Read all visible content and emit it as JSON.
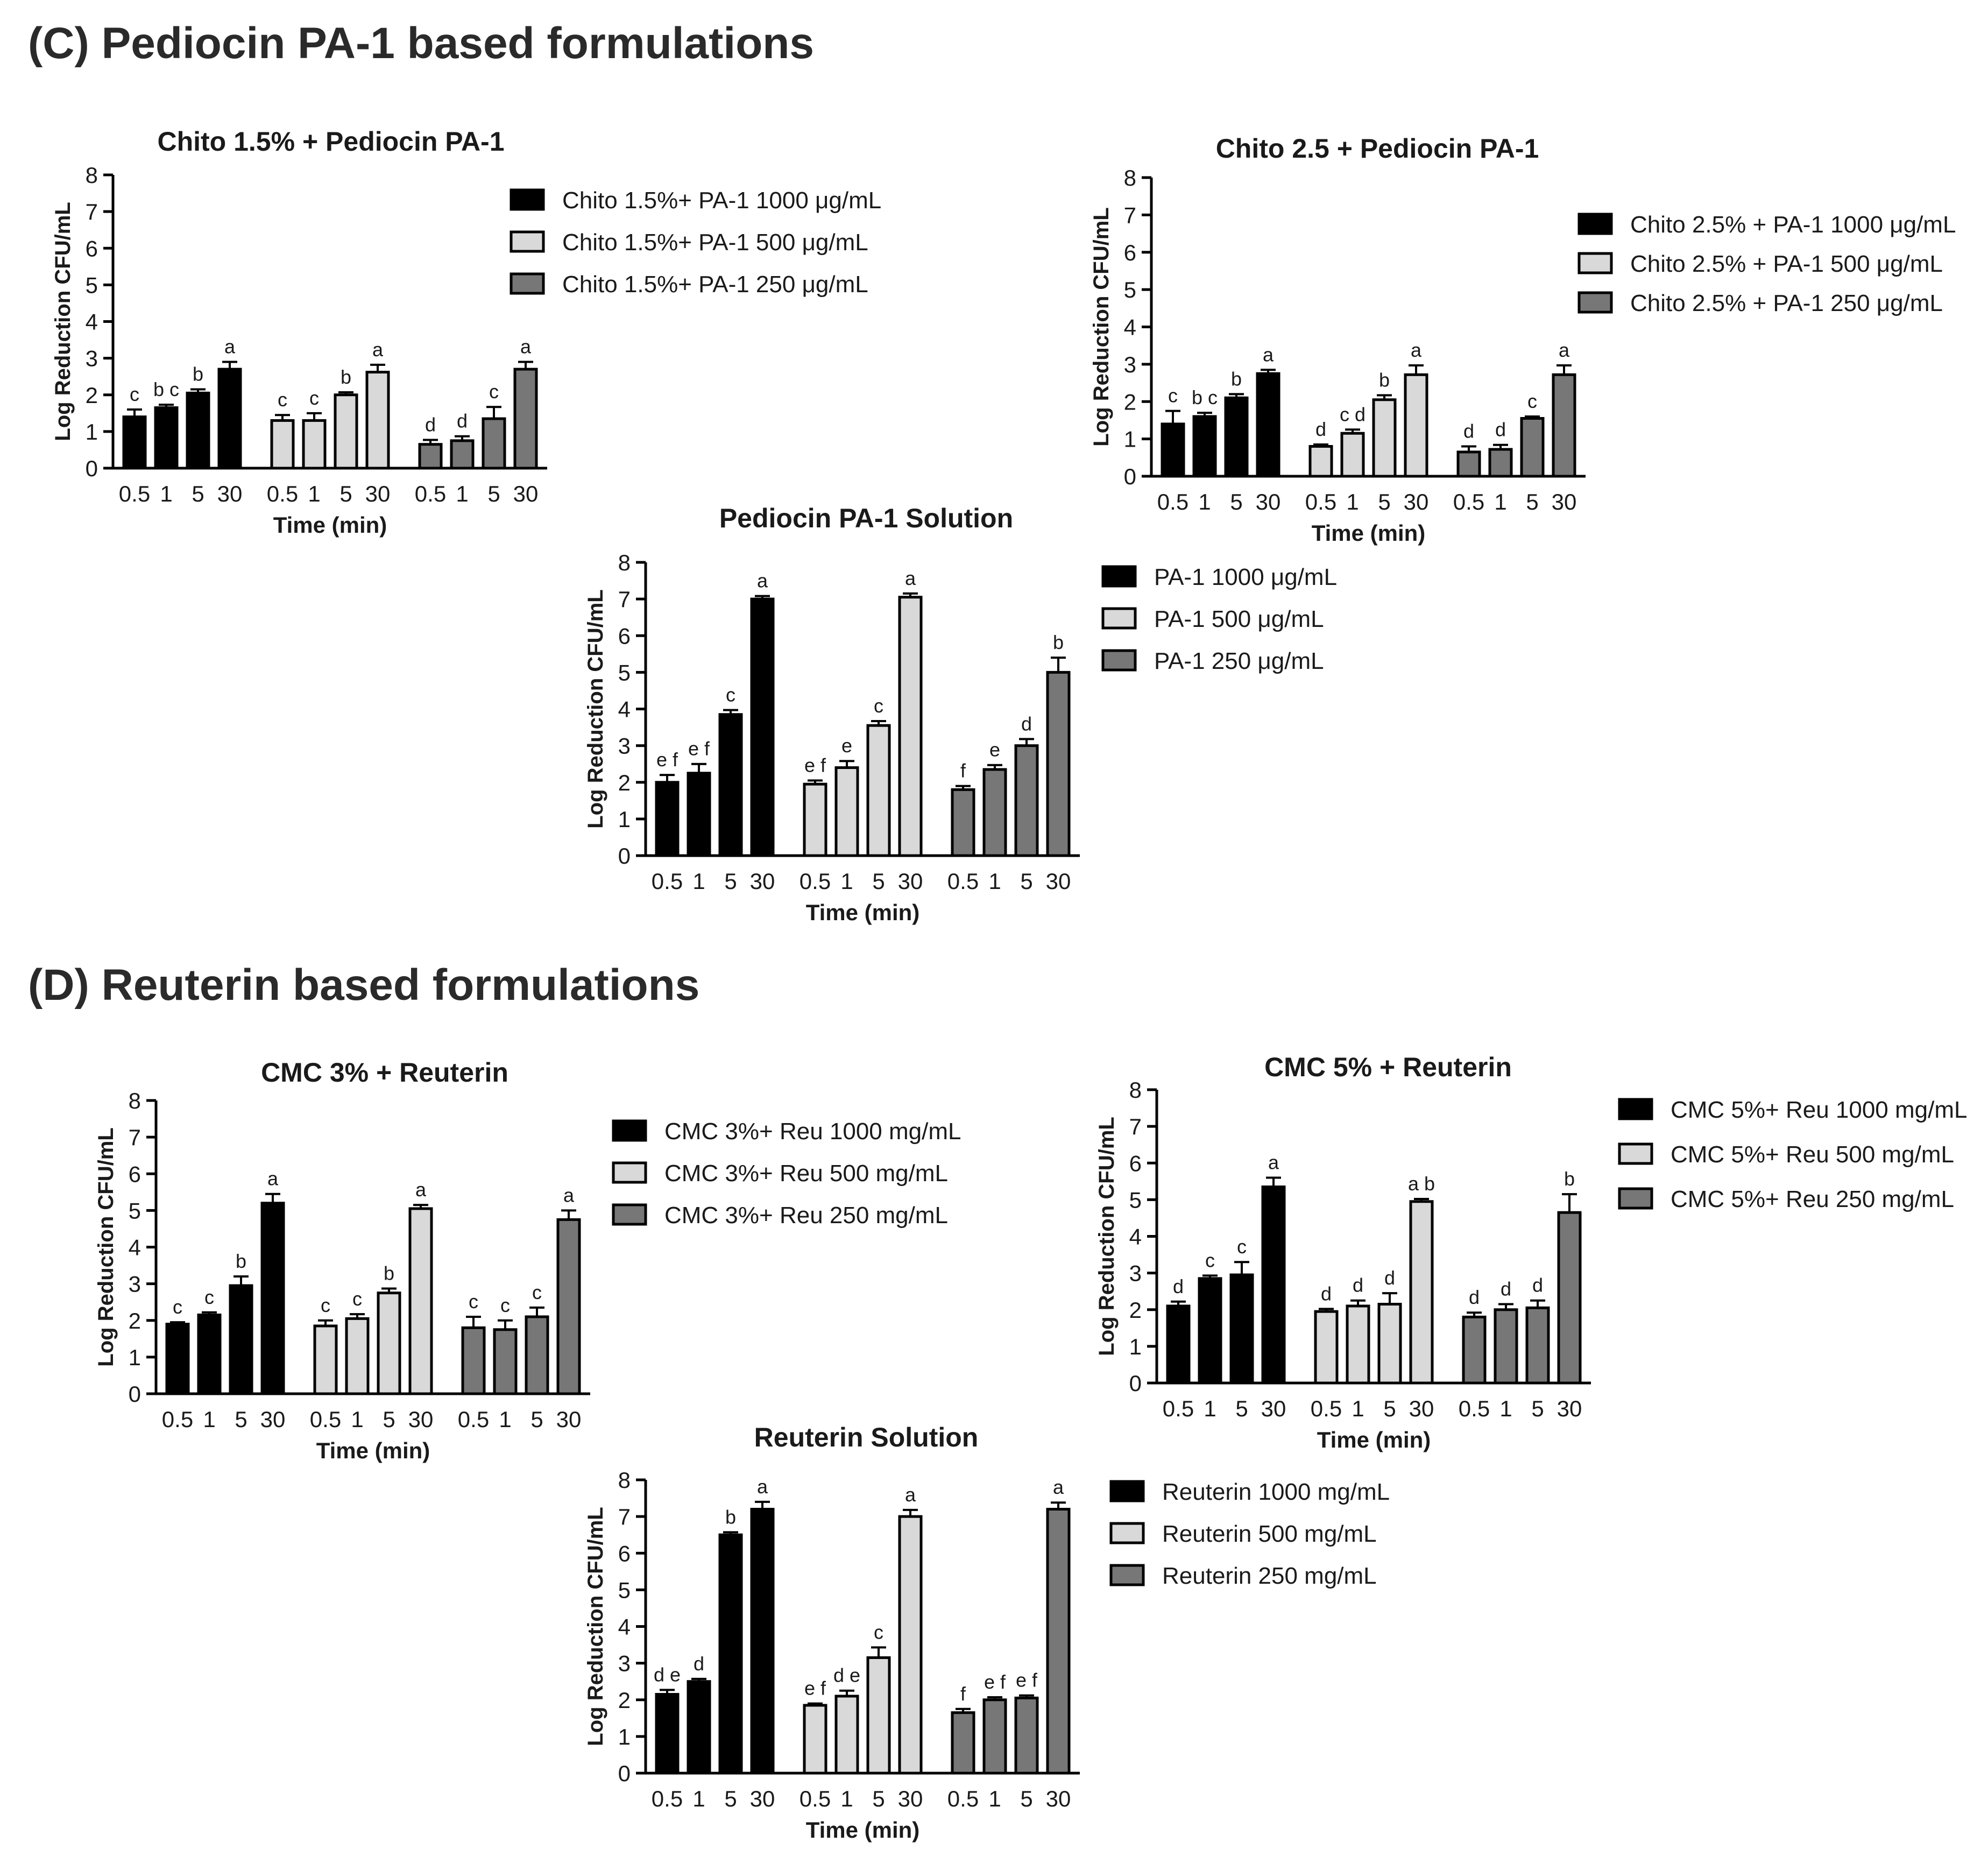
{
  "sections": {
    "c_title": "(C) Pediocin PA-1 based formulations",
    "d_title": "(D) Reuterin based formulations"
  },
  "colors": {
    "high": "#000000",
    "mid": "#d9d9d9",
    "low": "#777777",
    "axis": "#000000"
  },
  "chart_data": [
    {
      "id": "chito15",
      "type": "bar",
      "title": "Chito 1.5% + Pediocin PA-1",
      "xlabel": "Time  (min)",
      "ylabel": "Log Reduction CFU/mL",
      "ylim": [
        0,
        8
      ],
      "yticks": [
        "0",
        "1",
        "2",
        "3",
        "4",
        "5",
        "6",
        "7",
        "8"
      ],
      "categories": [
        "0.5",
        "1",
        "5",
        "30"
      ],
      "series": [
        {
          "name": "Chito 1.5%+ PA-1 1000 μg/mL",
          "color": "high",
          "values": [
            1.4,
            1.65,
            2.05,
            2.7
          ],
          "errors": [
            0.2,
            0.08,
            0.1,
            0.2
          ],
          "letters": [
            "c",
            "b c",
            "b",
            "a"
          ]
        },
        {
          "name": "Chito 1.5%+ PA-1 500 μg/mL",
          "color": "mid",
          "values": [
            1.3,
            1.3,
            2.0,
            2.62
          ],
          "errors": [
            0.15,
            0.2,
            0.07,
            0.2
          ],
          "letters": [
            "c",
            "c",
            "b",
            "a"
          ]
        },
        {
          "name": "Chito 1.5%+ PA-1 250 μg/mL",
          "color": "low",
          "values": [
            0.65,
            0.75,
            1.35,
            2.7
          ],
          "errors": [
            0.12,
            0.12,
            0.32,
            0.2
          ],
          "letters": [
            "d",
            "d",
            "c",
            "a"
          ]
        }
      ]
    },
    {
      "id": "chito25",
      "type": "bar",
      "title": "Chito 2.5 + Pediocin PA-1",
      "xlabel": "Time  (min)",
      "ylabel": "Log Reduction CFU/mL",
      "ylim": [
        0,
        8
      ],
      "yticks": [
        "0",
        "1",
        "2",
        "3",
        "4",
        "5",
        "6",
        "7",
        "8"
      ],
      "categories": [
        "0.5",
        "1",
        "5",
        "30"
      ],
      "series": [
        {
          "name": "Chito 2.5% + PA-1 1000 μg/mL",
          "color": "high",
          "values": [
            1.4,
            1.6,
            2.1,
            2.75
          ],
          "errors": [
            0.35,
            0.1,
            0.1,
            0.1
          ],
          "letters": [
            "c",
            "b c",
            "b",
            "a"
          ]
        },
        {
          "name": "Chito 2.5% + PA-1 500 μg/mL",
          "color": "mid",
          "values": [
            0.8,
            1.15,
            2.05,
            2.72
          ],
          "errors": [
            0.05,
            0.1,
            0.12,
            0.25
          ],
          "letters": [
            "d",
            "c d",
            "b",
            "a"
          ]
        },
        {
          "name": "Chito 2.5% + PA-1 250 μg/mL",
          "color": "low",
          "values": [
            0.65,
            0.72,
            1.55,
            2.72
          ],
          "errors": [
            0.15,
            0.12,
            0.05,
            0.25
          ],
          "letters": [
            "d",
            "d",
            "c",
            "a"
          ]
        }
      ]
    },
    {
      "id": "pa1sol",
      "type": "bar",
      "title": "Pediocin PA-1 Solution",
      "xlabel": "Time  (min)",
      "ylabel": "Log Reduction CFU/mL",
      "ylim": [
        0,
        8
      ],
      "yticks": [
        "0",
        "1",
        "2",
        "3",
        "4",
        "5",
        "6",
        "7",
        "8"
      ],
      "categories": [
        "0.5",
        "1",
        "5",
        "30"
      ],
      "series": [
        {
          "name": "PA-1 1000 μg/mL",
          "color": "high",
          "values": [
            2.0,
            2.25,
            3.85,
            7.0
          ],
          "errors": [
            0.2,
            0.25,
            0.12,
            0.08
          ],
          "letters": [
            "e f",
            "e f",
            "c",
            "a"
          ]
        },
        {
          "name": "PA-1 500 μg/mL",
          "color": "mid",
          "values": [
            1.95,
            2.4,
            3.55,
            7.05
          ],
          "errors": [
            0.1,
            0.18,
            0.12,
            0.1
          ],
          "letters": [
            "e f",
            "e",
            "c",
            "a"
          ]
        },
        {
          "name": "PA-1 250 μg/mL",
          "color": "low",
          "values": [
            1.8,
            2.35,
            3.0,
            5.0
          ],
          "errors": [
            0.1,
            0.12,
            0.18,
            0.4
          ],
          "letters": [
            "f",
            "e",
            "d",
            "b"
          ]
        }
      ]
    },
    {
      "id": "cmc3",
      "type": "bar",
      "title": "CMC 3% + Reuterin",
      "xlabel": "Time  (min)",
      "ylabel": "Log Reduction CFU/mL",
      "ylim": [
        0,
        8
      ],
      "yticks": [
        "0",
        "1",
        "2",
        "3",
        "4",
        "5",
        "6",
        "7",
        "8"
      ],
      "categories": [
        "0.5",
        "1",
        "5",
        "30"
      ],
      "series": [
        {
          "name": "CMC 3%+ Reu 1000 mg/mL",
          "color": "high",
          "values": [
            1.9,
            2.15,
            2.95,
            5.2
          ],
          "errors": [
            0.05,
            0.07,
            0.25,
            0.25
          ],
          "letters": [
            "c",
            "c",
            "b",
            "a"
          ]
        },
        {
          "name": "CMC 3%+ Reu 500 mg/mL",
          "color": "mid",
          "values": [
            1.85,
            2.05,
            2.75,
            5.05
          ],
          "errors": [
            0.15,
            0.12,
            0.12,
            0.1
          ],
          "letters": [
            "c",
            "c",
            "b",
            "a"
          ]
        },
        {
          "name": "CMC 3%+ Reu 250 mg/mL",
          "color": "low",
          "values": [
            1.8,
            1.75,
            2.1,
            4.75
          ],
          "errors": [
            0.3,
            0.25,
            0.25,
            0.25
          ],
          "letters": [
            "c",
            "c",
            "c",
            "a"
          ]
        }
      ]
    },
    {
      "id": "cmc5",
      "type": "bar",
      "title": "CMC 5% + Reuterin",
      "xlabel": "Time  (min)",
      "ylabel": "Log Reduction CFU/mL",
      "ylim": [
        0,
        8
      ],
      "yticks": [
        "0",
        "1",
        "2",
        "3",
        "4",
        "5",
        "6",
        "7",
        "8"
      ],
      "categories": [
        "0.5",
        "1",
        "5",
        "30"
      ],
      "series": [
        {
          "name": "CMC 5%+ Reu 1000 mg/mL",
          "color": "high",
          "values": [
            2.1,
            2.85,
            2.95,
            5.35
          ],
          "errors": [
            0.12,
            0.08,
            0.35,
            0.25
          ],
          "letters": [
            "d",
            "c",
            "c",
            "a"
          ]
        },
        {
          "name": "CMC 5%+ Reu 500 mg/mL",
          "color": "mid",
          "values": [
            1.95,
            2.1,
            2.15,
            4.95
          ],
          "errors": [
            0.07,
            0.15,
            0.3,
            0.07
          ],
          "letters": [
            "d",
            "d",
            "d",
            "a b"
          ]
        },
        {
          "name": "CMC 5%+ Reu 250 mg/mL",
          "color": "low",
          "values": [
            1.8,
            2.0,
            2.05,
            4.65
          ],
          "errors": [
            0.12,
            0.15,
            0.2,
            0.5
          ],
          "letters": [
            "d",
            "d",
            "d",
            "b"
          ]
        }
      ]
    },
    {
      "id": "reusol",
      "type": "bar",
      "title": "Reuterin Solution",
      "xlabel": "Time  (min)",
      "ylabel": "Log Reduction CFU/mL",
      "ylim": [
        0,
        8
      ],
      "yticks": [
        "0",
        "1",
        "2",
        "3",
        "4",
        "5",
        "6",
        "7",
        "8"
      ],
      "categories": [
        "0.5",
        "1",
        "5",
        "30"
      ],
      "series": [
        {
          "name": "Reuterin 1000 mg/mL",
          "color": "high",
          "values": [
            2.15,
            2.5,
            6.5,
            7.2
          ],
          "errors": [
            0.12,
            0.07,
            0.07,
            0.2
          ],
          "letters": [
            "d e",
            "d",
            "b",
            "a"
          ]
        },
        {
          "name": "Reuterin 500 mg/mL",
          "color": "mid",
          "values": [
            1.85,
            2.1,
            3.15,
            7.0
          ],
          "errors": [
            0.05,
            0.15,
            0.28,
            0.18
          ],
          "letters": [
            "e f",
            "d e",
            "c",
            "a"
          ]
        },
        {
          "name": "Reuterin 250 mg/mL",
          "color": "low",
          "values": [
            1.65,
            2.0,
            2.05,
            7.2
          ],
          "errors": [
            0.1,
            0.07,
            0.07,
            0.18
          ],
          "letters": [
            "f",
            "e f",
            "e f",
            "a"
          ]
        }
      ]
    }
  ]
}
